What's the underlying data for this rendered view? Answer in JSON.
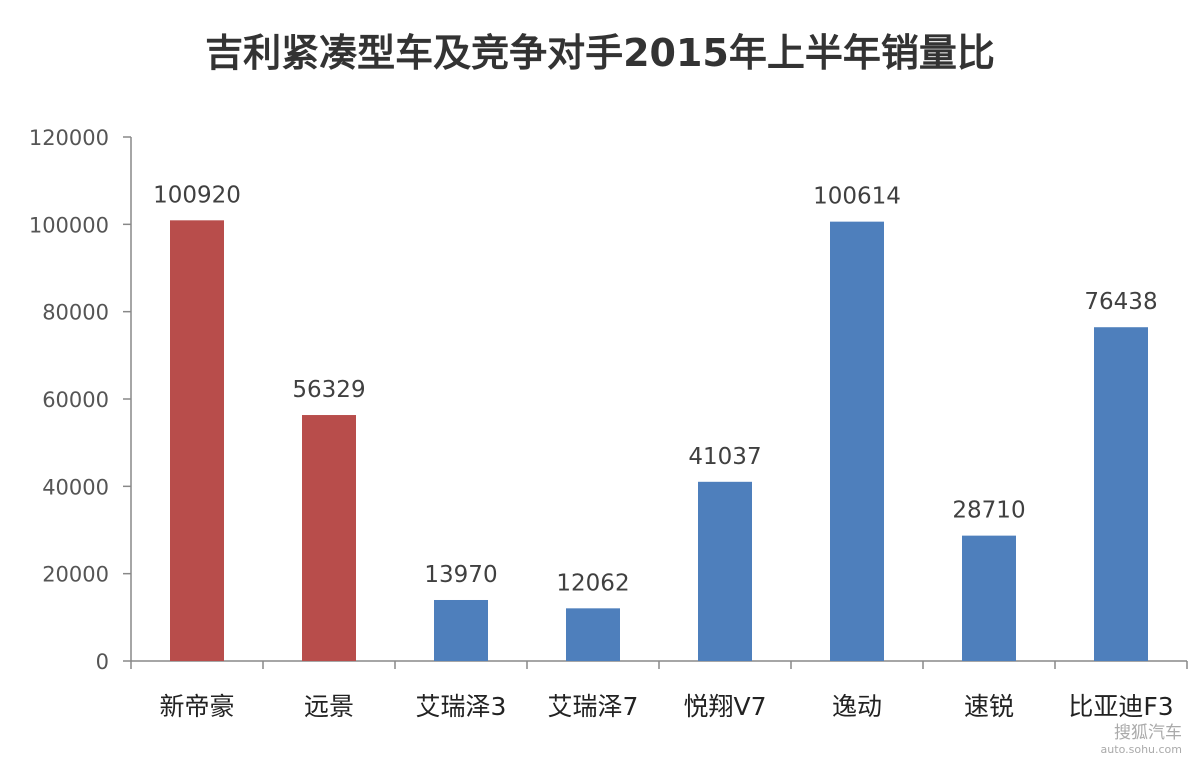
{
  "chart_data": {
    "type": "bar",
    "title": "吉利紧凑型车及竞争对手2015年上半年销量比",
    "categories": [
      "新帝豪",
      "远景",
      "艾瑞泽3",
      "艾瑞泽7",
      "悦翔V7",
      "逸动",
      "速锐",
      "比亚迪F3"
    ],
    "values": [
      100920,
      56329,
      13970,
      12062,
      41037,
      100614,
      28710,
      76438
    ],
    "bar_colors": [
      "#B84D4B",
      "#B84D4B",
      "#4E7FBC",
      "#4E7FBC",
      "#4E7FBC",
      "#4E7FBC",
      "#4E7FBC",
      "#4E7FBC"
    ],
    "xlabel": "",
    "ylabel": "",
    "ylim": [
      0,
      120000
    ],
    "yticks": [
      0,
      20000,
      40000,
      60000,
      80000,
      100000,
      120000
    ],
    "grid": false,
    "legend": "none"
  },
  "watermark": {
    "name": "搜狐汽车",
    "url": "auto.sohu.com"
  }
}
